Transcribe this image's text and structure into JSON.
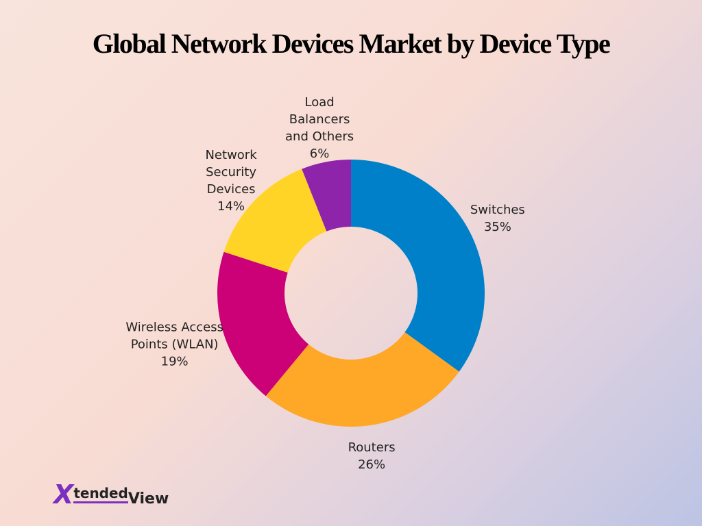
{
  "chart_data": {
    "type": "donut",
    "title": "Global Network Devices Market by Device Type",
    "categories": [
      "Switches",
      "Routers",
      "Wireless Access Points (WLAN)",
      "Network Security Devices",
      "Load Balancers and Others"
    ],
    "values": [
      35,
      26,
      19,
      14,
      6
    ],
    "value_labels": [
      "35%",
      "26%",
      "19%",
      "14%",
      "6%"
    ],
    "colors": [
      "#0080c8",
      "#ffa726",
      "#cc0077",
      "#ffd426",
      "#8e24aa"
    ]
  },
  "logo": {
    "mark": "X",
    "part1": "tended",
    "part2": "View"
  }
}
